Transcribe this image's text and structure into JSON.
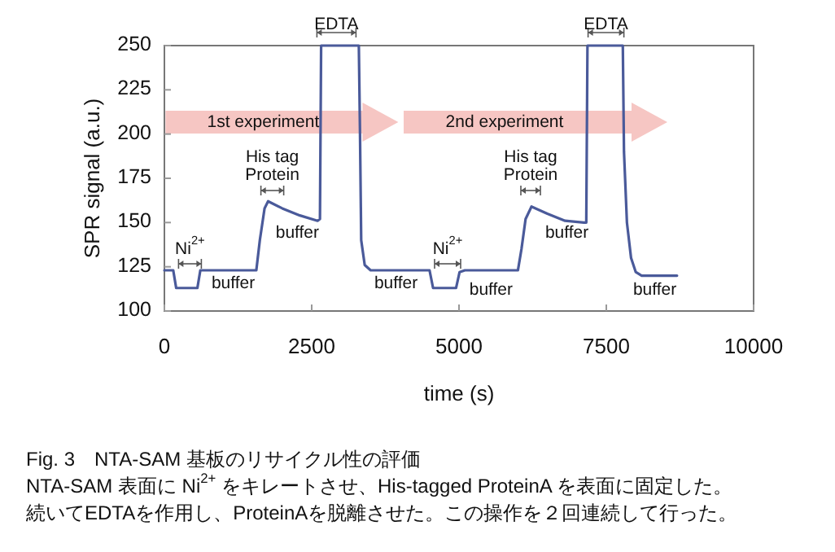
{
  "chart_data": {
    "type": "line",
    "title": "Fig. 3　NTA-SAM 基板のリサイクル性の評価",
    "xlabel": "time (s)",
    "ylabel": "SPR signal (a.u.)",
    "xlim": [
      0,
      10000
    ],
    "ylim": [
      100,
      250
    ],
    "xticks": [
      0,
      2500,
      5000,
      7500,
      10000
    ],
    "yticks": [
      100,
      125,
      150,
      175,
      200,
      225,
      250
    ],
    "x": [
      0,
      150,
      200,
      560,
      610,
      1560,
      1620,
      1700,
      1760,
      2000,
      2300,
      2600,
      2640,
      2660,
      3300,
      3320,
      3340,
      3400,
      3500,
      4500,
      4560,
      4950,
      5010,
      5100,
      6000,
      6060,
      6130,
      6230,
      6500,
      6800,
      7120,
      7160,
      7180,
      7780,
      7800,
      7850,
      7920,
      8000,
      8100,
      8700
    ],
    "series": [
      {
        "color": "#4a5a9a",
        "values": [
          123,
          123,
          113,
          113,
          123,
          123,
          140,
          158,
          162,
          158,
          154,
          151,
          152,
          250,
          250,
          200,
          140,
          126,
          123,
          123,
          113,
          113,
          122,
          123,
          123,
          135,
          152,
          159,
          155,
          151,
          150,
          150,
          250,
          250,
          190,
          150,
          130,
          122,
          120,
          120
        ]
      }
    ],
    "annotations": [
      "EDTA",
      "EDTA",
      "1st experiment",
      "2nd experiment",
      "His tag\nProtein",
      "His tag\nProtein",
      "Ni$^{2+}$",
      "buffer",
      "buffer",
      "buffer",
      "Ni$^{2+}$",
      "buffer",
      "buffer",
      "buffer",
      "NTA-SAM 表面に Ni$^{2+}$ をキレートさせ、His-tagged ProteinA を表面に固定した。",
      "続いてEDTAを作用し、ProteinAを脱離させた。この操作を２回連続して行った。"
    ]
  }
}
